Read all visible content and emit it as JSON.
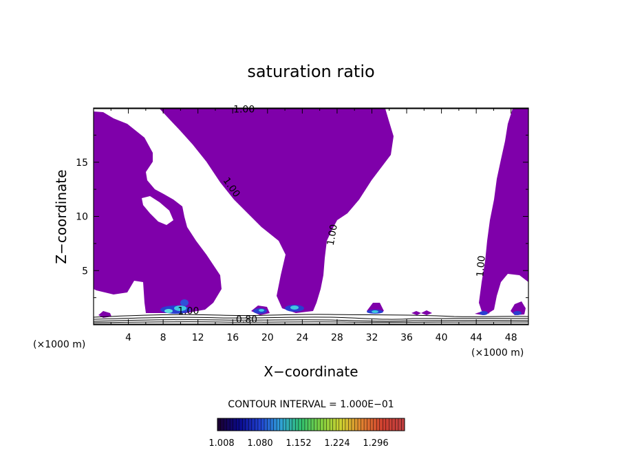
{
  "chart_data": {
    "type": "contour",
    "title": "saturation ratio",
    "xlabel": "X−coordinate",
    "ylabel": "Z−coordinate",
    "x_unit": "(×1000 m)",
    "x_unit_right": "(×1000 m)",
    "xlim": [
      0,
      50
    ],
    "ylim": [
      0,
      20
    ],
    "x_ticks": [
      4,
      8,
      12,
      16,
      20,
      24,
      28,
      32,
      36,
      40,
      44,
      48
    ],
    "y_ticks": [
      5,
      10,
      15
    ],
    "fill_color": "#7f00aa",
    "contour_labels": [
      {
        "text": "1.00",
        "x": 17.3,
        "y": 19.9,
        "rotate": 0
      },
      {
        "text": "1.00",
        "x": 15.9,
        "y": 12.7,
        "rotate": 55
      },
      {
        "text": "1.00",
        "x": 27.4,
        "y": 8.3,
        "rotate": -80
      },
      {
        "text": "1.00",
        "x": 44.5,
        "y": 5.4,
        "rotate": -85
      },
      {
        "text": "1.00",
        "x": 10.9,
        "y": 1.3,
        "rotate": 0
      },
      {
        "text": "0.80",
        "x": 17.6,
        "y": 0.5,
        "rotate": 0
      }
    ],
    "contour_interval_text": "CONTOUR INTERVAL = 1.000E−01",
    "colorbar": {
      "labels": [
        "1.008",
        "1.080",
        "1.152",
        "1.224",
        "1.296"
      ],
      "colors": [
        "#1a0033",
        "#0a0a8c",
        "#2040d0",
        "#30a0d8",
        "#30c070",
        "#80d040",
        "#d0d030",
        "#e08030",
        "#d04030",
        "#c04040"
      ]
    }
  }
}
